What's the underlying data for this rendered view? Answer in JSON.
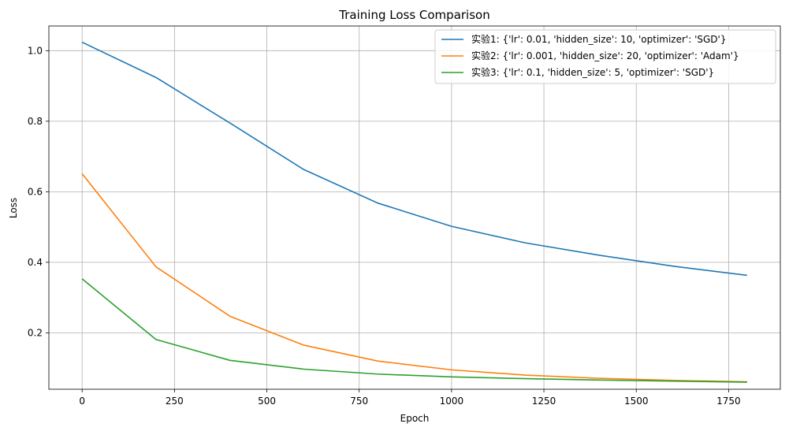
{
  "chart_data": {
    "type": "line",
    "title": "Training Loss Comparison",
    "xlabel": "Epoch",
    "ylabel": "Loss",
    "xlim": [
      -90,
      1890
    ],
    "ylim": [
      0.04,
      1.07
    ],
    "xticks": [
      0,
      250,
      500,
      750,
      1000,
      1250,
      1500,
      1750
    ],
    "yticks": [
      0.2,
      0.4,
      0.6,
      0.8,
      1.0
    ],
    "xtick_labels": [
      "0",
      "250",
      "500",
      "750",
      "1000",
      "1250",
      "1500",
      "1750"
    ],
    "ytick_labels": [
      "0.2",
      "0.4",
      "0.6",
      "0.8",
      "1.0"
    ],
    "grid": true,
    "legend_position": "top-right",
    "x": [
      0,
      200,
      400,
      600,
      800,
      1000,
      1200,
      1400,
      1600,
      1800
    ],
    "series": [
      {
        "name": "实验1: {'lr': 0.01, 'hidden_size': 10, 'optimizer': 'SGD'}",
        "color": "#1f77b4",
        "values": [
          1.024,
          0.924,
          0.795,
          0.663,
          0.568,
          0.502,
          0.455,
          0.42,
          0.389,
          0.363
        ]
      },
      {
        "name": "实验2: {'lr': 0.001, 'hidden_size': 20, 'optimizer': 'Adam'}",
        "color": "#ff7f0e",
        "values": [
          0.651,
          0.387,
          0.247,
          0.165,
          0.12,
          0.095,
          0.08,
          0.071,
          0.065,
          0.061
        ]
      },
      {
        "name": "实验3: {'lr': 0.1, 'hidden_size': 5, 'optimizer': 'SGD'}",
        "color": "#2ca02c",
        "values": [
          0.353,
          0.181,
          0.122,
          0.097,
          0.083,
          0.075,
          0.07,
          0.066,
          0.063,
          0.06
        ]
      }
    ]
  }
}
